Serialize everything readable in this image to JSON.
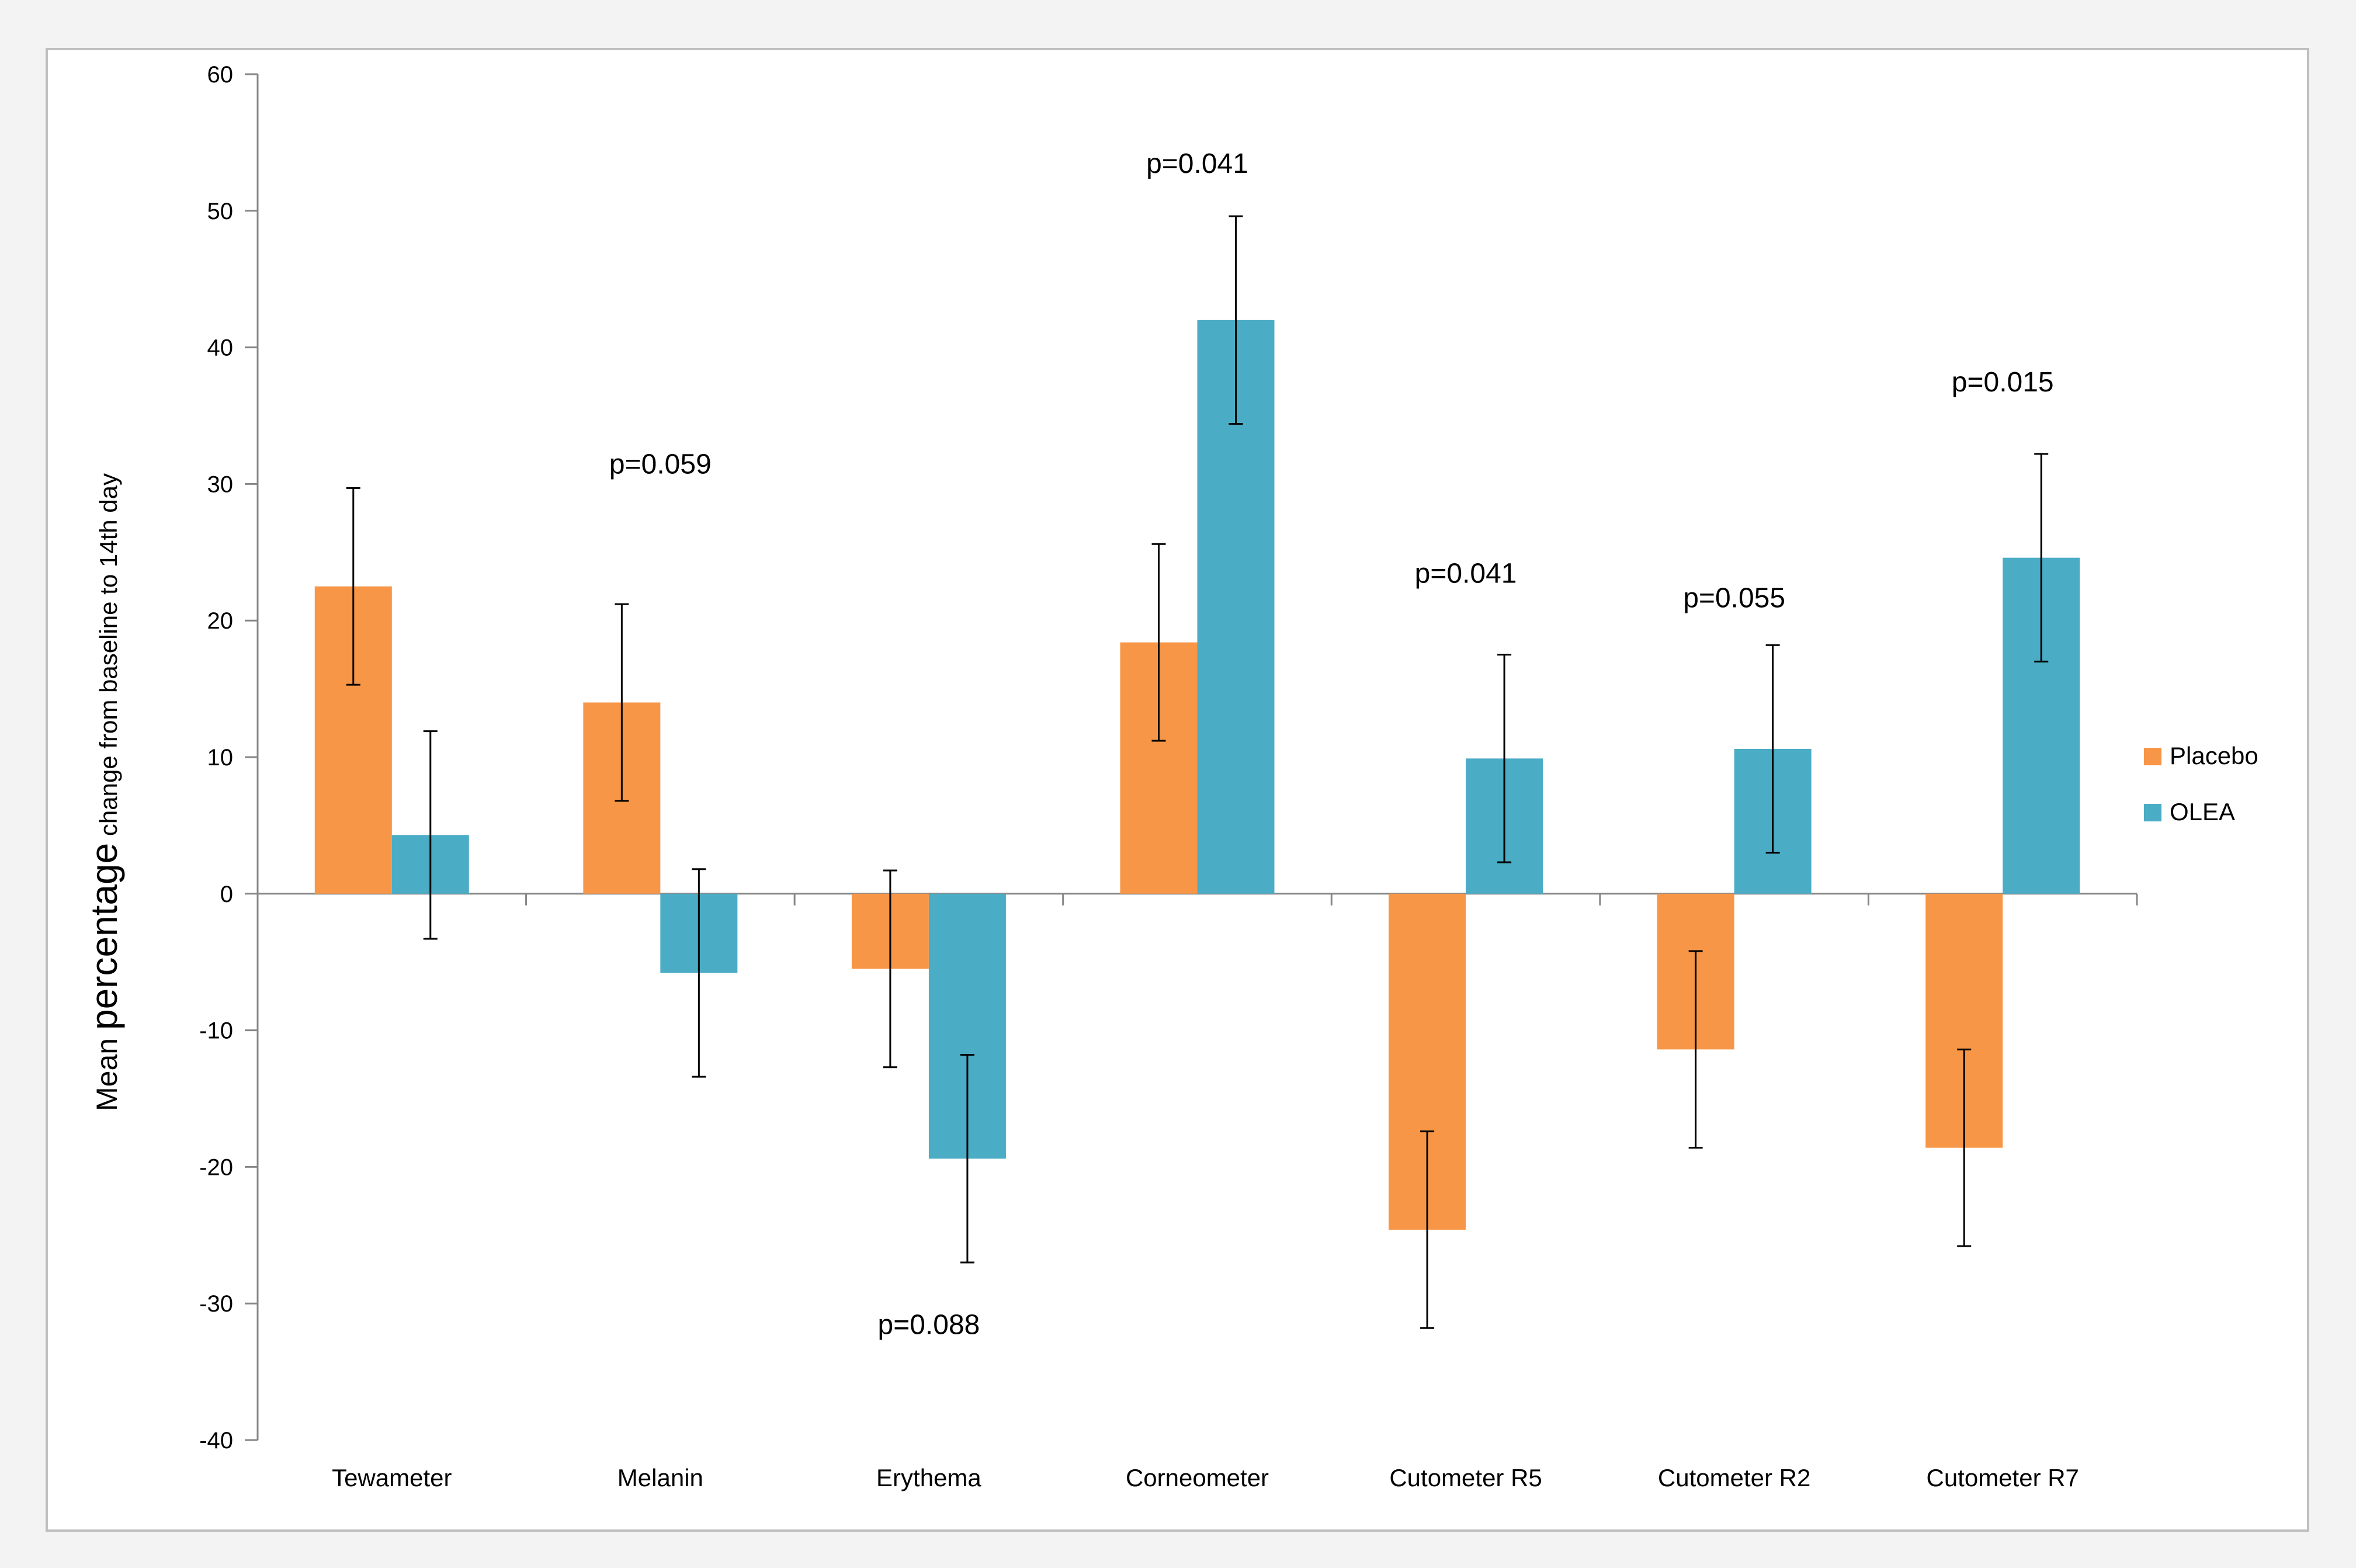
{
  "chart_data": {
    "type": "bar",
    "title": "",
    "xlabel": "",
    "ylabel_prefix": "Mean ",
    "ylabel_emphasis": "percentage",
    "ylabel_suffix": " change from baseline to 14th day",
    "ylim": [
      -40,
      60
    ],
    "yticks": [
      60,
      50,
      40,
      30,
      20,
      10,
      0,
      -10,
      -20,
      -30,
      -40
    ],
    "categories": [
      "Tewameter",
      "Melanin",
      "Erythema",
      "Corneometer",
      "Cutometer R5",
      "Cutometer R2",
      "Cutometer R7"
    ],
    "series": [
      {
        "name": "Placebo",
        "color": "#f79646",
        "values": [
          22.5,
          14.0,
          -5.5,
          18.4,
          -24.6,
          -11.4,
          -18.6
        ],
        "errors": [
          7.2,
          7.2,
          7.2,
          7.2,
          7.2,
          7.2,
          7.2
        ]
      },
      {
        "name": "OLEA",
        "color": "#4bacc6",
        "values": [
          4.3,
          -5.8,
          -19.4,
          42.0,
          9.9,
          10.6,
          24.6
        ],
        "errors": [
          7.6,
          7.6,
          7.6,
          7.6,
          7.6,
          7.6,
          7.6
        ]
      }
    ],
    "annotations": [
      {
        "category": "Melanin",
        "text": "p=0.059",
        "y": 31.5
      },
      {
        "category": "Erythema",
        "text": "p=0.088",
        "y": -31.5
      },
      {
        "category": "Corneometer",
        "text": "p=0.041",
        "y": 53.5
      },
      {
        "category": "Cutometer R5",
        "text": "p=0.041",
        "y": 23.5
      },
      {
        "category": "Cutometer R2",
        "text": "p=0.055",
        "y": 21.7
      },
      {
        "category": "Cutometer R7",
        "text": "p=0.015",
        "y": 37.5
      }
    ],
    "legend_position": "right"
  }
}
